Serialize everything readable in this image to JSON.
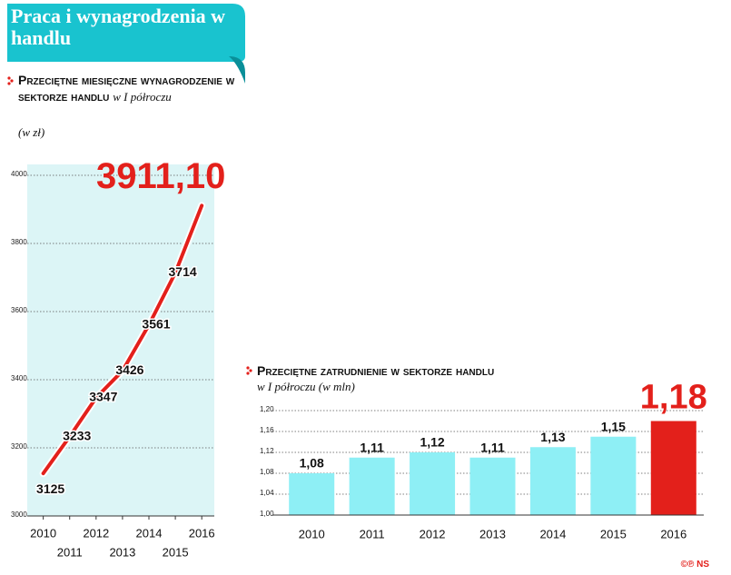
{
  "header": {
    "title": "Praca i wynagrodzenia w handlu"
  },
  "chart_data": [
    {
      "type": "line",
      "title": "Przeciętne miesięczne wynagrodzenie w sektorze handlu",
      "subtitle": "w I półroczu",
      "unit_label": "(w zł)",
      "x": [
        2010,
        2011,
        2012,
        2013,
        2014,
        2015,
        2016
      ],
      "xlim": [
        2009.6,
        2016.2
      ],
      "xticks": [
        2010,
        2011,
        2012,
        2013,
        2014,
        2015,
        2016
      ],
      "values": [
        3125,
        3233,
        3347,
        3426,
        3561,
        3714,
        3911.1
      ],
      "value_labels": [
        "3125",
        "3233",
        "3347",
        "3426",
        "3561",
        "3714",
        "3911,10"
      ],
      "color": "#e3201b",
      "background": "#dcf5f6",
      "ylim": [
        3000,
        4000
      ],
      "yticks": [
        3000,
        3200,
        3400,
        3600,
        3800,
        4000
      ],
      "grid": true
    },
    {
      "type": "bar",
      "title": "Przeciętne zatrudnienie w sektorze handlu",
      "subtitle": "w I półroczu (w mln)",
      "categories": [
        "2010",
        "2011",
        "2012",
        "2013",
        "2014",
        "2015",
        "2016"
      ],
      "values": [
        1.08,
        1.11,
        1.12,
        1.11,
        1.13,
        1.15,
        1.18
      ],
      "value_labels": [
        "1,08",
        "1,11",
        "1,12",
        "1,11",
        "1,13",
        "1,15",
        "1,18"
      ],
      "colors": [
        "#8eeff5",
        "#8eeff5",
        "#8eeff5",
        "#8eeff5",
        "#8eeff5",
        "#8eeff5",
        "#e3201b"
      ],
      "ylim": [
        1.0,
        1.2
      ],
      "yticks": [
        {
          "value": 1.0,
          "label": "1,00"
        },
        {
          "value": 1.04,
          "label": "1,04"
        },
        {
          "value": 1.08,
          "label": "1,08"
        },
        {
          "value": 1.12,
          "label": "1,12"
        },
        {
          "value": 1.16,
          "label": "1,16"
        },
        {
          "value": 1.2,
          "label": "1,20"
        }
      ],
      "grid": true
    }
  ],
  "footer": {
    "credit": "©℗ NS"
  }
}
